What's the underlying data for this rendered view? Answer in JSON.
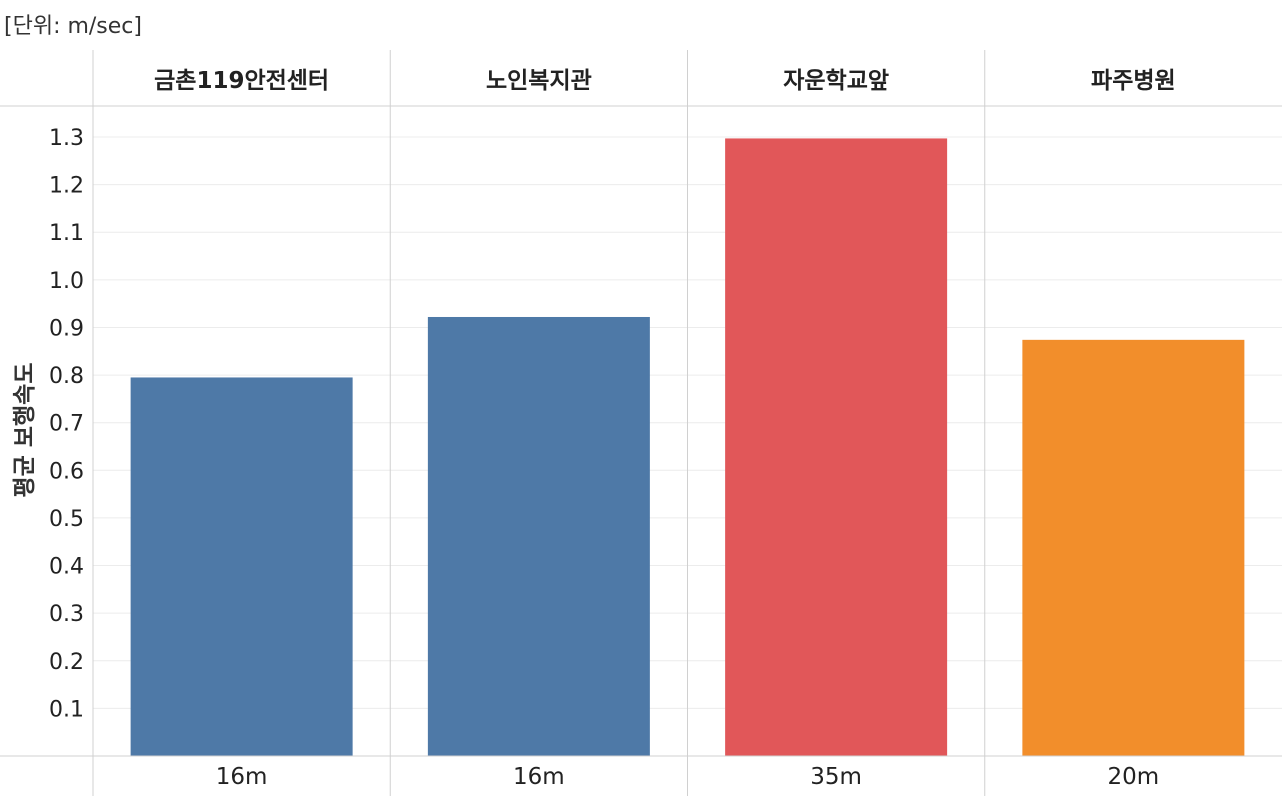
{
  "unit_label": "[단위: m/sec]",
  "chart_data": {
    "type": "bar",
    "title": "",
    "xlabel": "",
    "ylabel": "평균 보행속도",
    "ylim": [
      0,
      1.3
    ],
    "yticks": [
      "0.1",
      "0.2",
      "0.3",
      "0.4",
      "0.5",
      "0.6",
      "0.7",
      "0.8",
      "0.9",
      "1.0",
      "1.1",
      "1.2",
      "1.3"
    ],
    "categories": [
      "금촌119안전센터",
      "노인복지관",
      "자운학교앞",
      "파주병원"
    ],
    "values": [
      0.795,
      0.922,
      1.297,
      0.874
    ],
    "sub_labels": [
      "16m",
      "16m",
      "35m",
      "20m"
    ],
    "colors": [
      "#4e79a7",
      "#4e79a7",
      "#e15759",
      "#f28e2b"
    ],
    "grid": true
  }
}
